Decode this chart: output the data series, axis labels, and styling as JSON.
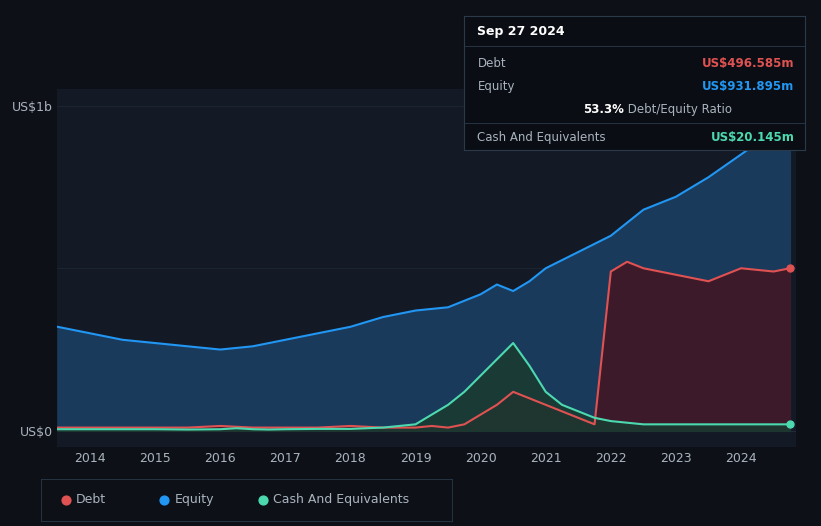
{
  "bg_color": "#0d1117",
  "plot_bg_color": "#131a26",
  "equity_color": "#2196f3",
  "debt_color": "#e05252",
  "cash_color": "#4dd9b0",
  "equity_fill": "#1a3a5c",
  "debt_fill": "#3d1a2a",
  "cash_fill": "#1a3a30",
  "grid_color": "#2a3a4a",
  "text_color": "#aab4be",
  "title_color": "#ffffff",
  "tooltip_bg": "#0a0e14",
  "tooltip_border": "#2a3a4a",
  "tooltip_date": "Sep 27 2024",
  "tooltip_debt_label": "Debt",
  "tooltip_debt_value": "US$496.585m",
  "tooltip_equity_label": "Equity",
  "tooltip_equity_value": "US$931.895m",
  "tooltip_ratio": "53.3%",
  "tooltip_ratio_label": " Debt/Equity Ratio",
  "tooltip_cash_label": "Cash And Equivalents",
  "tooltip_cash_value": "US$20.145m",
  "legend_debt": "Debt",
  "legend_equity": "Equity",
  "legend_cash": "Cash And Equivalents",
  "years": [
    2014,
    2015,
    2016,
    2017,
    2018,
    2019,
    2020,
    2021,
    2022,
    2023,
    2024
  ],
  "equity_data": {
    "x": [
      2013.5,
      2014.0,
      2014.5,
      2015.0,
      2015.5,
      2016.0,
      2016.5,
      2017.0,
      2017.5,
      2018.0,
      2018.5,
      2019.0,
      2019.5,
      2020.0,
      2020.25,
      2020.5,
      2020.75,
      2021.0,
      2021.5,
      2022.0,
      2022.5,
      2023.0,
      2023.5,
      2024.0,
      2024.5,
      2024.75
    ],
    "y": [
      0.32,
      0.3,
      0.28,
      0.27,
      0.26,
      0.25,
      0.26,
      0.28,
      0.3,
      0.32,
      0.35,
      0.37,
      0.38,
      0.42,
      0.45,
      0.43,
      0.46,
      0.5,
      0.55,
      0.6,
      0.68,
      0.72,
      0.78,
      0.85,
      0.92,
      0.95
    ]
  },
  "debt_data": {
    "x": [
      2013.5,
      2014.0,
      2014.5,
      2015.0,
      2015.5,
      2016.0,
      2016.5,
      2017.0,
      2017.5,
      2018.0,
      2018.5,
      2019.0,
      2019.25,
      2019.5,
      2019.75,
      2020.0,
      2020.25,
      2020.5,
      2020.75,
      2021.0,
      2021.25,
      2021.5,
      2021.75,
      2022.0,
      2022.25,
      2022.5,
      2023.0,
      2023.5,
      2024.0,
      2024.5,
      2024.75
    ],
    "y": [
      0.01,
      0.01,
      0.01,
      0.01,
      0.01,
      0.015,
      0.01,
      0.01,
      0.01,
      0.015,
      0.01,
      0.01,
      0.015,
      0.01,
      0.02,
      0.05,
      0.08,
      0.12,
      0.1,
      0.08,
      0.06,
      0.04,
      0.02,
      0.49,
      0.52,
      0.5,
      0.48,
      0.46,
      0.5,
      0.49,
      0.5
    ]
  },
  "cash_data": {
    "x": [
      2013.5,
      2014.0,
      2014.5,
      2015.0,
      2015.5,
      2016.0,
      2016.25,
      2016.5,
      2016.75,
      2017.0,
      2017.5,
      2018.0,
      2018.5,
      2019.0,
      2019.25,
      2019.5,
      2019.75,
      2020.0,
      2020.25,
      2020.5,
      2020.75,
      2021.0,
      2021.25,
      2021.5,
      2021.75,
      2022.0,
      2022.5,
      2023.0,
      2023.5,
      2024.0,
      2024.5,
      2024.75
    ],
    "y": [
      0.005,
      0.005,
      0.005,
      0.005,
      0.004,
      0.005,
      0.008,
      0.005,
      0.004,
      0.005,
      0.006,
      0.006,
      0.01,
      0.02,
      0.05,
      0.08,
      0.12,
      0.17,
      0.22,
      0.27,
      0.2,
      0.12,
      0.08,
      0.06,
      0.04,
      0.03,
      0.02,
      0.02,
      0.02,
      0.02,
      0.02,
      0.02
    ]
  },
  "xlim": [
    2013.5,
    2024.85
  ],
  "ylim": [
    -0.05,
    1.05
  ],
  "ytick_positions": [
    0.0,
    1.0
  ],
  "ytick_labels": [
    "US$0",
    "US$1b"
  ]
}
